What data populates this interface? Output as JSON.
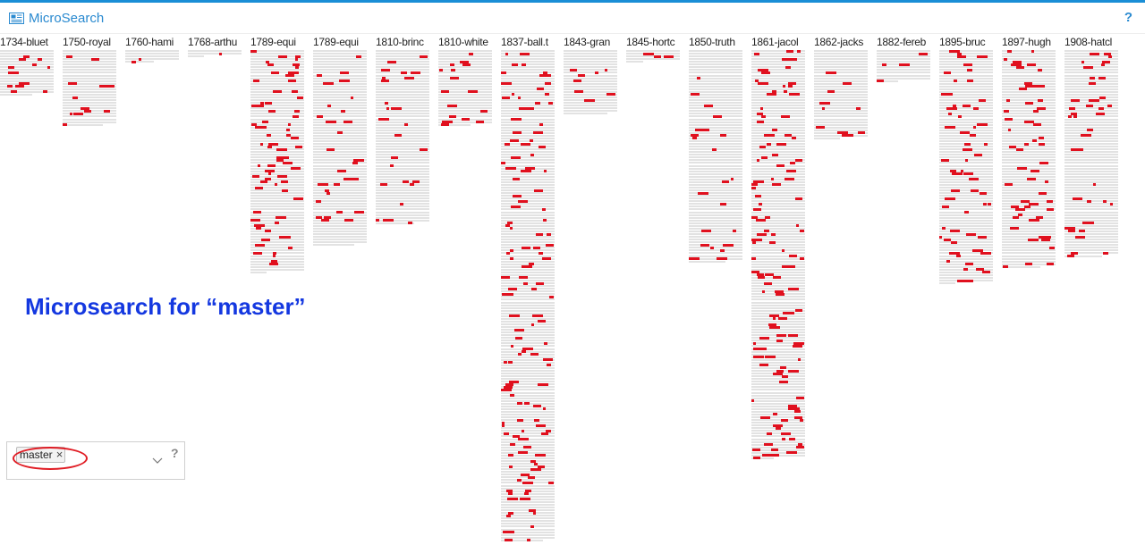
{
  "app": {
    "title": "MicroSearch",
    "help_label": "?"
  },
  "brand_icon": "newspaper-icon",
  "accent_color": "#1a8ed6",
  "hit_color": "#e0101e",
  "callout": "Microsearch for “master”",
  "search": {
    "tags": [
      {
        "label": "master",
        "remove_label": "×"
      }
    ],
    "input_value": "",
    "dropdown_icon": "chevron-down-icon",
    "help_label": "?"
  },
  "documents": [
    {
      "title": "1734-bluet",
      "lines": 17
    },
    {
      "title": "1750-royal",
      "lines": 28
    },
    {
      "title": "1760-hami",
      "lines": 5
    },
    {
      "title": "1768-arthu",
      "lines": 3
    },
    {
      "title": "1789-equi",
      "lines": 82
    },
    {
      "title": "1789-equi",
      "lines": 72
    },
    {
      "title": "1810-brinc",
      "lines": 64
    },
    {
      "title": "1810-white",
      "lines": 28
    },
    {
      "title": "1837-ball.t",
      "lines": 180
    },
    {
      "title": "1843-gran",
      "lines": 24
    },
    {
      "title": "1845-hortc",
      "lines": 5
    },
    {
      "title": "1850-truth",
      "lines": 78
    },
    {
      "title": "1861-jacol",
      "lines": 150
    },
    {
      "title": "1862-jacks",
      "lines": 33
    },
    {
      "title": "1882-fereb",
      "lines": 12
    },
    {
      "title": "1895-bruc",
      "lines": 86
    },
    {
      "title": "1897-hugh",
      "lines": 80
    },
    {
      "title": "1908-hatcl",
      "lines": 76
    }
  ]
}
